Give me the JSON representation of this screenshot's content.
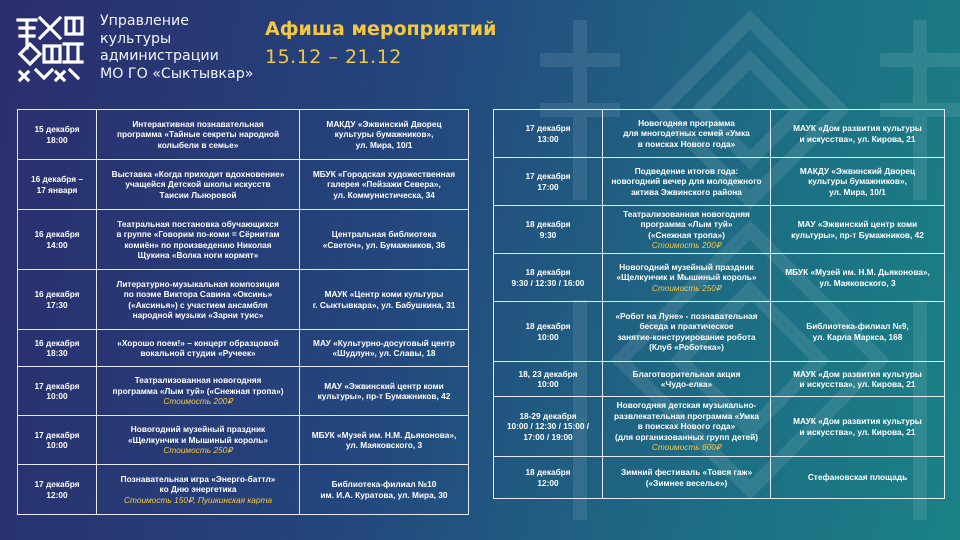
{
  "header": {
    "org_lines": [
      "Управление",
      "культуры",
      "администрации",
      "МО ГО «Сыктывкар»"
    ],
    "title": "Афиша мероприятий",
    "dates": "15.12 – 21.12"
  },
  "colors": {
    "accent": "#f5c842",
    "border": "#e6e9f0"
  },
  "left_table": [
    {
      "when": "15 декабря\n18:00",
      "what": "Интерактивная познавательная\nпрограмма «Тайные секреты народной\nколыбели в семье»",
      "price": "",
      "place": "МАКДУ «Эжвинский Дворец\nкультуры бумажников»,\nул. Мира, 10/1"
    },
    {
      "when": "16 декабря –\n17 января",
      "what": "Выставка «Когда приходит вдохновение»\nучащейся Детской школы искусств\nТаисии Лыюровой",
      "price": "",
      "place": "МБУК «Городская художественная\nгалерея «Пейзажи Севера»,\nул. Коммунистическа, 34"
    },
    {
      "when": "16 декабря\n14:00",
      "what": "Театральная постановка обучающихся\nв группе «Говорим по-коми = Сёрнитам\nкомиён» по произведению Николая\nЩукина «Волка ноги кормят»",
      "price": "",
      "place": "Центральная библиотека\n«Светоч», ул. Бумажников, 36"
    },
    {
      "when": "16 декабря\n17:30",
      "what": "Литературно-музыкальная композиция\nпо поэме Виктора Савина «Оксинь»\n(«Аксинья») с участием ансамбля\nнародной музыки «Зарни туис»",
      "price": "",
      "place": "МАУК «Центр коми культуры\nг. Сыктывкара», ул. Бабушкина, 31"
    },
    {
      "when": "16 декабря\n18:30",
      "what": "«Хорошо поем!» – концерт образцовой\nвокальной студии «Ручеек»",
      "price": "",
      "place": "МАУ «Культурно-досуговый центр\n«Шудлун», ул. Славы, 18"
    },
    {
      "when": "17 декабря\n10:00",
      "what": "Театрализованная новогодняя\nпрограмма «Лым туй» («Снежная тропа»)",
      "price": "Стоимость 200₽",
      "place": "МАУ «Эжвинский центр коми\nкультуры», пр-т Бумажников, 42"
    },
    {
      "when": "17 декабря\n10:00",
      "what": "Новогодний музейный праздник\n«Щелкунчик и Мышиный король»",
      "price": "Стоимость 250₽",
      "place": "МБУК «Музей им. Н.М. Дьяконова»,\nул. Маяковского, 3"
    },
    {
      "when": "17 декабря\n12:00",
      "what": "Познавательная игра «Энерго-баттл»\nко Дню энергетика",
      "price": "Стоимость 150₽, Пушкинская карта",
      "place": "Библиотека-филиал №10\nим. И.А. Куратова, ул. Мира, 30"
    }
  ],
  "right_table": [
    {
      "when": "17 декабря\n13:00",
      "what": "Новогодняя программа\nдля многодетных семей «Умка\nв поисках Нового года»",
      "price": "",
      "place": "МАУК «Дом развития культуры\nи искусства», ул. Кирова, 21"
    },
    {
      "when": "17 декабря\n17:00",
      "what": "Подведение итогов года:\nновогодний вечер для молодежного\nактива Эжвинского района",
      "price": "",
      "place": "МАКДУ «Эжвинский Дворец\nкультуры бумажников»,\nул. Мира, 10/1"
    },
    {
      "when": "18 декабря\n9:30",
      "what": "Театрализованная новогодняя\nпрограмма «Лым туй»\n(«Снежная тропа»)",
      "price": "Стоимость 200₽",
      "place": "МАУ «Эжвинский центр коми\nкультуры», пр-т Бумажников, 42"
    },
    {
      "when": "18 декабря\n9:30 / 12:30 / 16:00",
      "what": "Новогодний музейный праздник\n«Щелкунчик и Мышиный король»",
      "price": "Стоимость 250₽",
      "place": "МБУК «Музей им. Н.М. Дьяконова»,\nул. Маяковского, 3"
    },
    {
      "when": "18 декабря\n10:00",
      "what": "«Робот на Луне» - познавательная\nбеседа и практическое\nзанятие-конструирование робота\n(Клуб «Роботека»)",
      "price": "",
      "place": "Библиотека-филиал №9,\nул. Карла Маркса, 168"
    },
    {
      "when": "18, 23 декабря\n10:00",
      "what": "Благотворительная акция\n«Чудо-елка»",
      "price": "",
      "place": "МАУК «Дом развития культуры\nи искусства», ул. Кирова, 21"
    },
    {
      "when": "18-29 декабря\n10:00 / 12:30 / 15:00 /\n17:00 / 19:00",
      "what": "Новогодняя детская музыкально-\nразвлекательная программа «Умка\nв поисках Нового года»\n(для организованных групп детей)",
      "price": "Стоимость 600₽",
      "place": "МАУК «Дом развития культуры\nи искусства», ул. Кирова, 21"
    },
    {
      "when": "18 декабря\n12:00",
      "what": "Зимний фестиваль «Товся гаж»\n(«Зимнее веселье»)",
      "price": "",
      "place": "Стефановская площадь"
    }
  ]
}
